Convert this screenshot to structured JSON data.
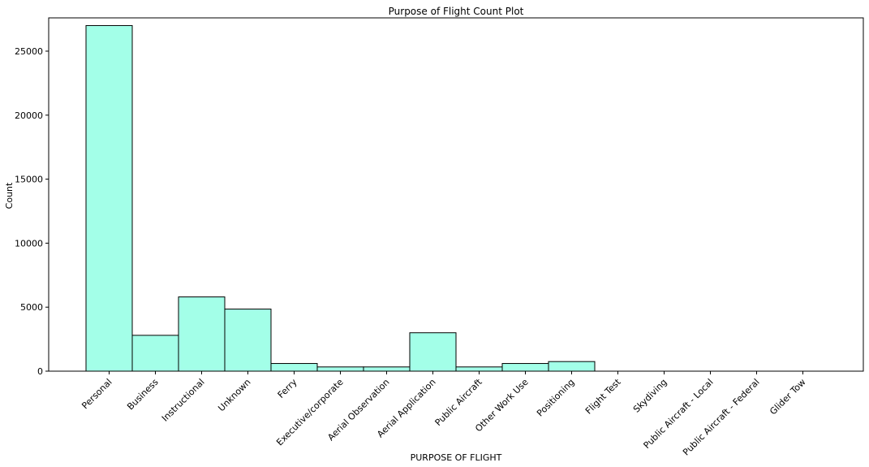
{
  "chart_data": {
    "type": "bar",
    "title": "Purpose of Flight Count Plot",
    "xlabel": "PURPOSE OF FLIGHT",
    "ylabel": "Count",
    "categories": [
      "Personal",
      "Business",
      "Instructional",
      "Unknown",
      "Ferry",
      "Executive/corporate",
      "Aerial Observation",
      "Aerial Application",
      "Public Aircraft",
      "Other Work Use",
      "Positioning",
      "Flight Test",
      "Skydiving",
      "Public Aircraft - Local",
      "Public Aircraft - Federal",
      "Glider Tow"
    ],
    "values": [
      27000,
      2800,
      5800,
      4850,
      600,
      330,
      330,
      3000,
      330,
      600,
      750,
      0,
      0,
      0,
      0,
      0
    ],
    "ylim": [
      0,
      27600
    ],
    "yticks": [
      0,
      5000,
      10000,
      15000,
      20000,
      25000
    ],
    "grid": false,
    "bar_color": "#a3ffe8",
    "edge_color": "#000000"
  }
}
